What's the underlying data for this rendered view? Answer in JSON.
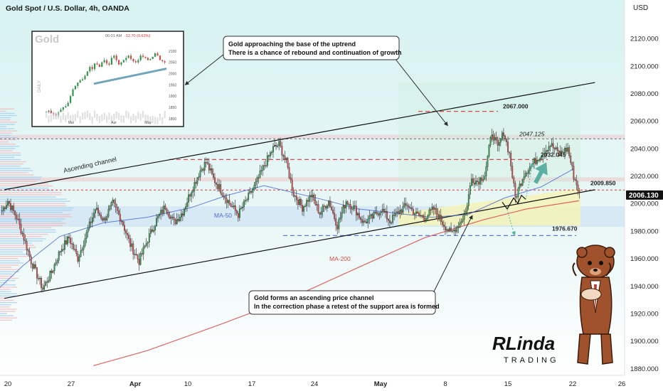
{
  "header": {
    "title": "Gold Spot / U.S. Dollar, 4h, OANDA",
    "currency": "USD"
  },
  "chart_data": {
    "type": "candlestick",
    "title": "Gold Spot / U.S. Dollar, 4h, OANDA",
    "ylabel": "USD",
    "ylim": [
      1875,
      2148
    ],
    "yticks": [
      1880,
      1900,
      1920,
      1940,
      1960,
      1980,
      2000,
      2020,
      2040,
      2060,
      2080,
      2100,
      2120
    ],
    "ytick_labels": [
      "1880.000",
      "1900.000",
      "1920.000",
      "1940.000",
      "1960.000",
      "1980.000",
      "2000.000",
      "2020.000",
      "2040.000",
      "2060.000",
      "2080.000",
      "2100.000",
      "2120.000"
    ],
    "xtick_labels": [
      "20",
      "27",
      "Apr",
      "10",
      "17",
      "24",
      "May",
      "8",
      "15",
      "22",
      "26"
    ],
    "current_price": "2006.130",
    "close_anchors": [
      [
        0,
        1995
      ],
      [
        4,
        2002
      ],
      [
        10,
        1990
      ],
      [
        15,
        1975
      ],
      [
        20,
        1958
      ],
      [
        28,
        1938
      ],
      [
        34,
        1950
      ],
      [
        40,
        1966
      ],
      [
        46,
        1975
      ],
      [
        52,
        1960
      ],
      [
        58,
        1978
      ],
      [
        64,
        1996
      ],
      [
        70,
        1988
      ],
      [
        76,
        2000
      ],
      [
        82,
        1988
      ],
      [
        88,
        1970
      ],
      [
        94,
        1958
      ],
      [
        100,
        1974
      ],
      [
        106,
        1988
      ],
      [
        112,
        1998
      ],
      [
        118,
        1986
      ],
      [
        124,
        1994
      ],
      [
        130,
        2010
      ],
      [
        136,
        2024
      ],
      [
        140,
        2030
      ],
      [
        145,
        2018
      ],
      [
        150,
        2010
      ],
      [
        156,
        2000
      ],
      [
        162,
        1992
      ],
      [
        168,
        2003
      ],
      [
        174,
        2014
      ],
      [
        180,
        2028
      ],
      [
        186,
        2040
      ],
      [
        190,
        2043
      ],
      [
        195,
        2030
      ],
      [
        200,
        2007
      ],
      [
        206,
        1997
      ],
      [
        212,
        2006
      ],
      [
        218,
        1993
      ],
      [
        224,
        2002
      ],
      [
        230,
        1984
      ],
      [
        236,
        2002
      ],
      [
        242,
        1996
      ],
      [
        248,
        1986
      ],
      [
        254,
        1990
      ],
      [
        260,
        1996
      ],
      [
        266,
        1987
      ],
      [
        272,
        1994
      ],
      [
        278,
        1999
      ],
      [
        284,
        1992
      ],
      [
        290,
        1990
      ],
      [
        296,
        1996
      ],
      [
        302,
        1986
      ],
      [
        308,
        1978
      ],
      [
        314,
        1986
      ],
      [
        318,
        1994
      ],
      [
        322,
        2018
      ],
      [
        326,
        2016
      ],
      [
        331,
        2021
      ],
      [
        336,
        2052
      ],
      [
        340,
        2040
      ],
      [
        344,
        2052
      ],
      [
        348,
        2036
      ],
      [
        352,
        2004
      ],
      [
        358,
        2022
      ],
      [
        364,
        2029
      ],
      [
        370,
        2036
      ],
      [
        376,
        2043
      ],
      [
        382,
        2036
      ],
      [
        388,
        2040
      ],
      [
        392,
        2020
      ],
      [
        396,
        2008
      ]
    ],
    "series": [
      {
        "name": "MA-50",
        "label": "MA-50",
        "color": "#4f6bd0",
        "points": [
          [
            -5,
            1935
          ],
          [
            15,
            1955
          ],
          [
            40,
            1976
          ],
          [
            70,
            1986
          ],
          [
            100,
            1990
          ],
          [
            130,
            1997
          ],
          [
            155,
            2006
          ],
          [
            180,
            2013
          ],
          [
            196,
            2009
          ],
          [
            220,
            2003
          ],
          [
            245,
            1996
          ],
          [
            270,
            1993
          ],
          [
            295,
            1990
          ],
          [
            320,
            1992
          ],
          [
            345,
            2004
          ],
          [
            370,
            2012
          ],
          [
            392,
            2025
          ]
        ]
      },
      {
        "name": "MA-200",
        "label": "MA-200",
        "color": "#d64b4b",
        "points": [
          [
            63,
            1882
          ],
          [
            100,
            1893
          ],
          [
            150,
            1912
          ],
          [
            200,
            1932
          ],
          [
            250,
            1956
          ],
          [
            290,
            1975
          ],
          [
            330,
            1988
          ],
          [
            360,
            1996
          ],
          [
            396,
            2002
          ]
        ]
      }
    ],
    "levels": [
      {
        "label": "2067.000",
        "value": 2067
      },
      {
        "label": "2047.125",
        "value": 2047
      },
      {
        "label": "2032.045",
        "value": 2032
      },
      {
        "label": "2009.850",
        "value": 2009.8
      },
      {
        "label": "1976.670",
        "value": 1976.7
      }
    ],
    "channel": {
      "label": "Ascending channel",
      "upper": [
        [
          2,
          2010
        ],
        [
          407,
          2088
        ]
      ],
      "lower": [
        [
          2,
          1931
        ],
        [
          407,
          2010
        ]
      ]
    },
    "support_zone": [
      1983,
      1998
    ],
    "resistance_zone": [
      2016,
      2019
    ],
    "mid_zone": [
      2047,
      2050
    ]
  },
  "annotations": {
    "top": {
      "line1": "Gold approaching the base of the uptrend",
      "line2": "There is a chance of rebound and continuation of growth"
    },
    "bottom": {
      "line1": "Gold forms an ascending price channel",
      "line2": "In the correction phase a retest of the support area is formed"
    }
  },
  "inset": {
    "label": "Gold",
    "change": "-12.70 (0.63%)",
    "time": "06:01 AM",
    "side_label": "DAILY",
    "yticks": [
      "2100",
      "2050",
      "2000",
      "1950",
      "1900",
      "1850",
      "1800"
    ],
    "xticks": [
      "Mar",
      "Apr",
      "May"
    ]
  },
  "logo": {
    "line1": "RLinda",
    "line2": "TRADING"
  },
  "colors": {
    "bull": "#2e9a4c",
    "bear": "#d64b4b",
    "background_top": "#d9f3f2",
    "background_bottom": "#ffffff",
    "price_tag": "#101010",
    "arrow": "#4ea79a"
  }
}
